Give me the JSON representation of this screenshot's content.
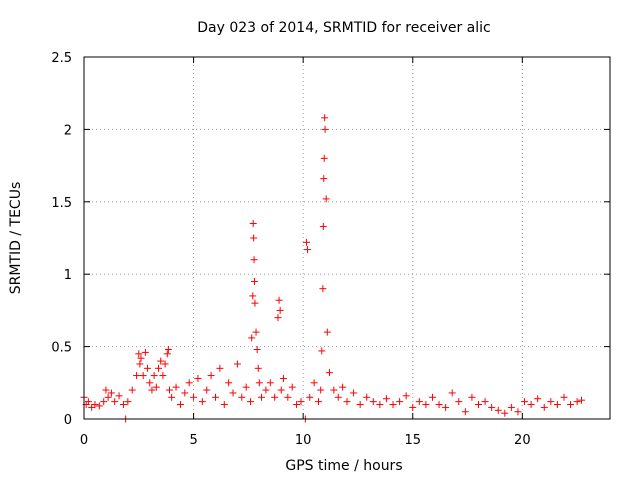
{
  "chart_data": {
    "type": "scatter",
    "title": "Day 023 of 2014, SRMTID for receiver alic",
    "xlabel": "GPS time / hours",
    "ylabel": "SRMTID / TECUs",
    "xlim": [
      0,
      24
    ],
    "ylim": [
      0,
      2.5
    ],
    "x_ticks": [
      0,
      5,
      10,
      15,
      20
    ],
    "x_tick_labels": [
      "0",
      "5",
      "10",
      "15",
      "20"
    ],
    "y_ticks": [
      0,
      0.5,
      1,
      1.5,
      2,
      2.5
    ],
    "y_tick_labels": [
      "0",
      "0.5",
      "1",
      "1.5",
      "2",
      "2.5"
    ],
    "grid": true,
    "marker": "+",
    "color": "#ff0000",
    "series": [
      {
        "name": "SRMTID",
        "x": [
          0.0,
          0.1,
          0.2,
          0.35,
          0.5,
          0.7,
          0.9,
          1.0,
          1.1,
          1.25,
          1.4,
          1.6,
          1.8,
          1.9,
          2.0,
          2.2,
          2.4,
          2.5,
          2.55,
          2.6,
          2.7,
          2.8,
          2.9,
          3.0,
          3.1,
          3.2,
          3.3,
          3.4,
          3.5,
          3.6,
          3.7,
          3.8,
          3.85,
          3.9,
          4.0,
          4.2,
          4.4,
          4.6,
          4.8,
          5.0,
          5.2,
          5.4,
          5.6,
          5.8,
          6.0,
          6.2,
          6.4,
          6.6,
          6.8,
          7.0,
          7.2,
          7.4,
          7.6,
          7.65,
          7.7,
          7.72,
          7.74,
          7.76,
          7.78,
          7.8,
          7.85,
          7.9,
          7.95,
          8.0,
          8.1,
          8.3,
          8.5,
          8.7,
          8.85,
          8.9,
          8.95,
          9.0,
          9.1,
          9.3,
          9.5,
          9.7,
          9.9,
          10.1,
          10.15,
          10.2,
          10.3,
          10.5,
          10.7,
          10.8,
          10.85,
          10.9,
          10.92,
          10.94,
          10.96,
          10.98,
          11.0,
          11.05,
          11.1,
          11.2,
          11.4,
          11.6,
          11.8,
          12.0,
          12.3,
          12.6,
          12.9,
          13.2,
          13.5,
          13.8,
          14.1,
          14.4,
          14.7,
          15.0,
          15.3,
          15.6,
          15.9,
          16.2,
          16.5,
          16.8,
          17.1,
          17.4,
          17.7,
          18.0,
          18.3,
          18.6,
          18.9,
          19.2,
          19.5,
          19.8,
          20.1,
          20.4,
          20.7,
          21.0,
          21.3,
          21.6,
          21.9,
          22.2,
          22.5,
          22.7
        ],
        "values": [
          0.15,
          0.1,
          0.12,
          0.08,
          0.1,
          0.09,
          0.12,
          0.2,
          0.15,
          0.18,
          0.12,
          0.16,
          0.1,
          0.0,
          0.12,
          0.2,
          0.3,
          0.45,
          0.38,
          0.42,
          0.3,
          0.46,
          0.35,
          0.25,
          0.2,
          0.3,
          0.22,
          0.35,
          0.4,
          0.3,
          0.38,
          0.45,
          0.48,
          0.2,
          0.15,
          0.22,
          0.1,
          0.18,
          0.25,
          0.15,
          0.28,
          0.12,
          0.2,
          0.3,
          0.15,
          0.35,
          0.1,
          0.25,
          0.18,
          0.38,
          0.15,
          0.22,
          0.12,
          0.56,
          0.85,
          1.35,
          1.25,
          1.1,
          0.95,
          0.8,
          0.6,
          0.48,
          0.35,
          0.25,
          0.15,
          0.2,
          0.25,
          0.15,
          0.7,
          0.82,
          0.75,
          0.2,
          0.28,
          0.15,
          0.22,
          0.1,
          0.12,
          0.0,
          1.22,
          1.17,
          0.15,
          0.25,
          0.12,
          0.2,
          0.47,
          0.9,
          1.33,
          1.66,
          1.8,
          2.08,
          2.0,
          1.52,
          0.6,
          0.32,
          0.2,
          0.15,
          0.22,
          0.12,
          0.18,
          0.1,
          0.15,
          0.12,
          0.1,
          0.14,
          0.1,
          0.12,
          0.16,
          0.08,
          0.12,
          0.1,
          0.15,
          0.1,
          0.08,
          0.18,
          0.12,
          0.05,
          0.15,
          0.1,
          0.12,
          0.08,
          0.06,
          0.04,
          0.08,
          0.05,
          0.12,
          0.1,
          0.14,
          0.08,
          0.12,
          0.1,
          0.15,
          0.1,
          0.12,
          0.13
        ]
      }
    ]
  }
}
